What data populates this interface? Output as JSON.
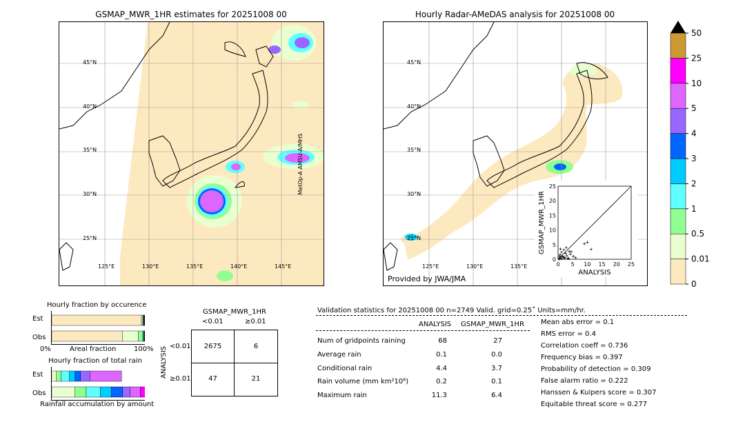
{
  "left_map": {
    "title": "GSMAP_MWR_1HR estimates for 20251008 00",
    "lat_labels": [
      "45°N",
      "40°N",
      "35°N",
      "30°N",
      "25°N"
    ],
    "lon_labels": [
      "125°E",
      "130°E",
      "135°E",
      "140°E",
      "145°E"
    ],
    "satellite_label": "MetOp-A AMSU-A/MHS"
  },
  "right_map": {
    "title": "Hourly Radar-AMeDAS analysis for 20251008 00",
    "lat_labels": [
      "45°N",
      "40°N",
      "35°N",
      "30°N",
      "25°N"
    ],
    "lon_labels": [
      "125°E",
      "130°E",
      "135°E"
    ],
    "credit": "Provided by JWA/JMA"
  },
  "colorbar": {
    "levels": [
      "0",
      "0.01",
      "0.5",
      "1",
      "2",
      "3",
      "4",
      "5",
      "10",
      "25",
      "50"
    ],
    "colors": [
      "#fde9c0",
      "#eaffd0",
      "#90ff90",
      "#60ffff",
      "#00ccff",
      "#0066ff",
      "#9966ff",
      "#dd66ff",
      "#ff00ff",
      "#cc9933"
    ],
    "extend_color": "#000000"
  },
  "chart_data": [
    {
      "type": "scatter",
      "xlabel": "ANALYSIS",
      "ylabel": "GSMAP_MWR_1HR",
      "xlim": [
        0,
        25
      ],
      "ylim": [
        0,
        25
      ],
      "xticks": [
        "0",
        "5",
        "10",
        "15",
        "20",
        "25"
      ],
      "yticks": [
        "0",
        "5",
        "10",
        "15",
        "20",
        "25"
      ],
      "x": [
        0.3,
        0.5,
        0.7,
        1.0,
        1.2,
        1.5,
        2.0,
        2.3,
        2.6,
        3.0,
        3.4,
        3.8,
        4.2,
        0.8,
        1.8,
        2.8,
        4.5,
        5.2,
        6.0,
        9.0,
        10.0,
        11.3,
        0.4,
        1.1,
        2.2,
        3.5
      ],
      "y": [
        0.2,
        1.0,
        1.5,
        0.5,
        2.4,
        1.0,
        3.2,
        0.6,
        2.0,
        1.2,
        0.4,
        2.7,
        1.8,
        3.5,
        0.8,
        4.0,
        2.6,
        1.0,
        0.5,
        5.3,
        5.8,
        3.4,
        0.1,
        0.2,
        0.3,
        0.2
      ]
    },
    {
      "type": "bar",
      "title": "Hourly fraction by occurence",
      "xlabel": "Areal fraction",
      "x_left_label": "0%",
      "x_right_label": "100%",
      "categories": [
        "Est",
        "Obs"
      ],
      "series": [
        {
          "name": "0",
          "values": [
            0.963,
            0.758
          ]
        },
        {
          "name": "0.01",
          "values": [
            0.015,
            0.17
          ]
        },
        {
          "name": "0.5",
          "values": [
            0.005,
            0.05
          ]
        },
        {
          "name": "1",
          "values": [
            0.005,
            0.008
          ]
        },
        {
          "name": "2",
          "values": [
            0.004,
            0.006
          ]
        },
        {
          "name": "3",
          "values": [
            0.003,
            0.004
          ]
        },
        {
          "name": "4",
          "values": [
            0.002,
            0.002
          ]
        },
        {
          "name": "5",
          "values": [
            0.002,
            0.001
          ]
        },
        {
          "name": "10",
          "values": [
            0.001,
            0.001
          ]
        }
      ]
    },
    {
      "type": "bar",
      "title": "Hourly fraction of total rain",
      "xlabel": "Rainfall accumulation by amount",
      "categories": [
        "Est",
        "Obs"
      ],
      "series": [
        {
          "name": "0.01",
          "values": [
            0.05,
            0.25
          ]
        },
        {
          "name": "0.5",
          "values": [
            0.05,
            0.12
          ]
        },
        {
          "name": "1",
          "values": [
            0.09,
            0.15
          ]
        },
        {
          "name": "2",
          "values": [
            0.06,
            0.12
          ]
        },
        {
          "name": "3",
          "values": [
            0.06,
            0.12
          ]
        },
        {
          "name": "4",
          "values": [
            0.1,
            0.08
          ]
        },
        {
          "name": "5",
          "values": [
            0.34,
            0.11
          ]
        },
        {
          "name": "10",
          "values": [
            0.0,
            0.08
          ]
        }
      ]
    },
    {
      "type": "table",
      "title": "GSMAP_MWR_1HR",
      "col_headers": [
        "<0.01",
        "≥0.01"
      ],
      "row_headers": [
        "<0.01",
        "≥0.01"
      ],
      "row_axis_label": "ANALYSIS",
      "cells": [
        [
          "2675",
          "6"
        ],
        [
          "47",
          "21"
        ]
      ]
    }
  ],
  "validation": {
    "header": "Validation statistics for 20251008 00  n=2749 Valid. grid=0.25˚ Units=mm/hr.",
    "col_analysis": "ANALYSIS",
    "col_gsmap": "GSMAP_MWR_1HR",
    "rows": [
      {
        "label": "Num of gridpoints raining",
        "analysis": "68",
        "gsmap": "27"
      },
      {
        "label": "Average rain",
        "analysis": "0.1",
        "gsmap": "0.0"
      },
      {
        "label": "Conditional rain",
        "analysis": "4.4",
        "gsmap": "3.7"
      },
      {
        "label": "Rain volume (mm km²10⁶)",
        "analysis": "0.2",
        "gsmap": "0.1"
      },
      {
        "label": "Maximum rain",
        "analysis": "11.3",
        "gsmap": "6.4"
      }
    ],
    "scores": [
      "Mean abs error =    0.1",
      "RMS error =    0.4",
      "Correlation coeff =  0.736",
      "Frequency bias =  0.397",
      "Probability of detection =  0.309",
      "False alarm ratio =  0.222",
      "Hanssen & Kuipers score =  0.307",
      "Equitable threat score =  0.277"
    ]
  }
}
